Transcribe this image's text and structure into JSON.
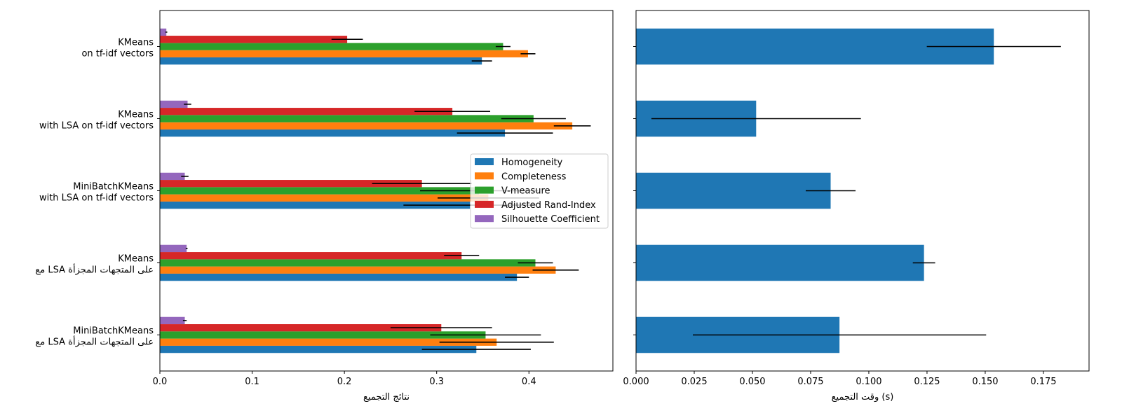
{
  "chart_data": [
    {
      "type": "bar",
      "orientation": "horizontal",
      "categories": [
        [
          "KMeans",
          "on tf-idf vectors"
        ],
        [
          "KMeans",
          "with LSA on tf-idf vectors"
        ],
        [
          "MiniBatchKMeans",
          "with LSA on tf-idf vectors"
        ],
        [
          "KMeans",
          "مع LSA على المتجهات المجزأة"
        ],
        [
          "MiniBatchKMeans",
          "مع LSA على المتجهات المجزأة"
        ]
      ],
      "series": [
        {
          "name": "Homogeneity",
          "color": "#1f77b4",
          "values": [
            0.349,
            0.374,
            0.336,
            0.387,
            0.343
          ],
          "errors": [
            0.011,
            0.052,
            0.072,
            0.013,
            0.059
          ]
        },
        {
          "name": "Completeness",
          "color": "#ff7f0e",
          "values": [
            0.399,
            0.447,
            0.356,
            0.429,
            0.365
          ],
          "errors": [
            0.008,
            0.02,
            0.055,
            0.025,
            0.062
          ]
        },
        {
          "name": "V-measure",
          "color": "#2ca02c",
          "values": [
            0.372,
            0.405,
            0.346,
            0.407,
            0.353
          ],
          "errors": [
            0.008,
            0.035,
            0.064,
            0.019,
            0.06
          ]
        },
        {
          "name": "Adjusted Rand-Index",
          "color": "#d62728",
          "values": [
            0.203,
            0.317,
            0.284,
            0.327,
            0.305
          ],
          "errors": [
            0.017,
            0.041,
            0.054,
            0.019,
            0.055
          ]
        },
        {
          "name": "Silhouette Coefficient",
          "color": "#9467bd",
          "values": [
            0.007,
            0.03,
            0.027,
            0.029,
            0.027
          ],
          "errors": [
            0.001,
            0.004,
            0.004,
            0.001,
            0.002
          ]
        }
      ],
      "xlabel": "نتائج التجميع",
      "xlim": [
        0,
        0.491
      ],
      "xticks": [
        "0.0",
        "0.1",
        "0.2",
        "0.3",
        "0.4"
      ],
      "legend_placement": "center-right",
      "grid": false
    },
    {
      "type": "bar",
      "orientation": "horizontal",
      "series": [
        {
          "color": "#1f77b4",
          "values": [
            0.1537,
            0.0516,
            0.0836,
            0.1237,
            0.0874
          ],
          "errors": [
            0.0288,
            0.045,
            0.0107,
            0.0048,
            0.063
          ]
        }
      ],
      "xlabel": "وقت التجميع (s)",
      "xlim": [
        0,
        0.1946
      ],
      "xticks": [
        "0.000",
        "0.025",
        "0.050",
        "0.075",
        "0.100",
        "0.125",
        "0.150",
        "0.175"
      ],
      "grid": false
    }
  ]
}
